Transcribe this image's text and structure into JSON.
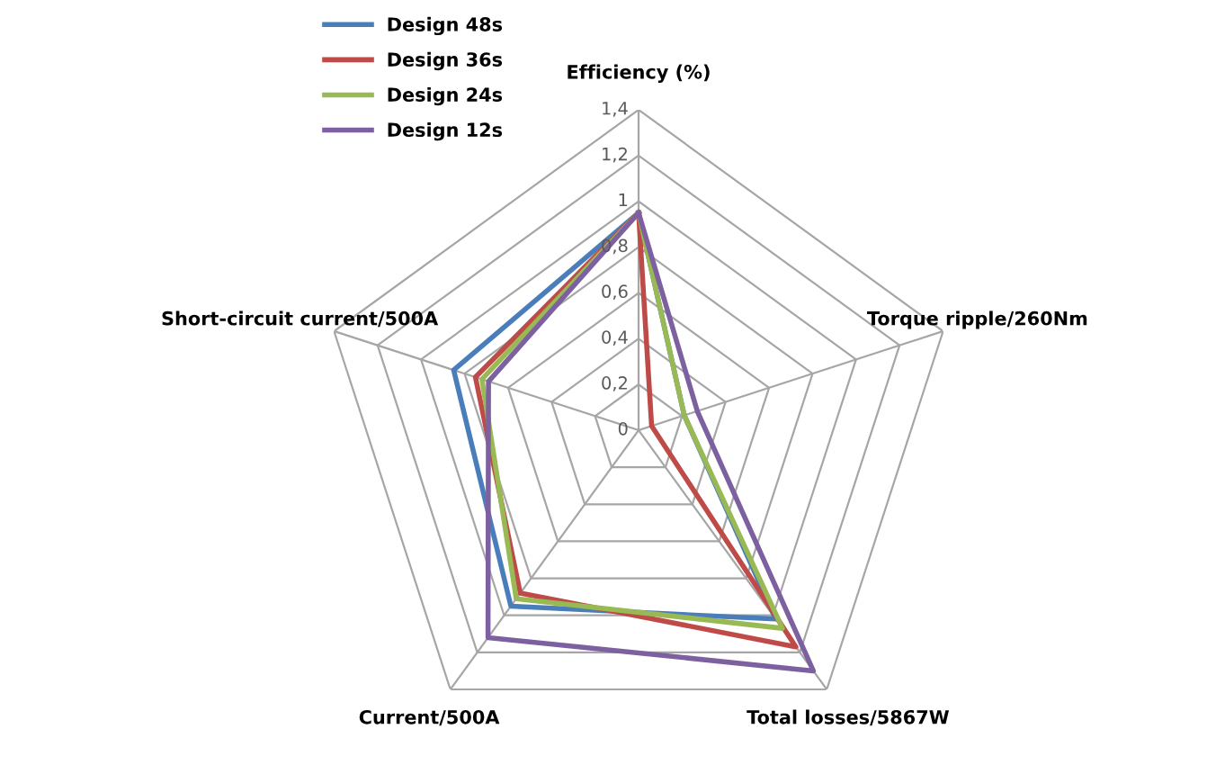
{
  "chart_data": {
    "type": "radar",
    "categories": [
      "Efficiency (%)",
      "Torque ripple/260Nm",
      "Total losses/5867W",
      "Current/500A",
      "Short-circuit current/500A"
    ],
    "series": [
      {
        "name": "Design 48s",
        "color": "#4a7ebb",
        "values": [
          0.95,
          0.21,
          1.02,
          0.95,
          0.85
        ]
      },
      {
        "name": "Design 36s",
        "color": "#be4b48",
        "values": [
          0.95,
          0.06,
          1.17,
          0.88,
          0.75
        ]
      },
      {
        "name": "Design 24s",
        "color": "#98b954",
        "values": [
          0.95,
          0.21,
          1.07,
          0.91,
          0.72
        ]
      },
      {
        "name": "Design 12s",
        "color": "#7d60a0",
        "values": [
          0.95,
          0.27,
          1.3,
          1.12,
          0.69
        ]
      }
    ],
    "ylim": [
      0,
      1.4
    ],
    "yticks": [
      {
        "value": 0,
        "label": "0"
      },
      {
        "value": 0.2,
        "label": "0,2"
      },
      {
        "value": 0.4,
        "label": "0,4"
      },
      {
        "value": 0.6,
        "label": "0,6"
      },
      {
        "value": 0.8,
        "label": "0,8"
      },
      {
        "value": 1,
        "label": "1"
      },
      {
        "value": 1.2,
        "label": "1,2"
      },
      {
        "value": 1.4,
        "label": "1,4"
      }
    ],
    "grid": true,
    "legend": "top left",
    "marker": "none",
    "line_style": "solid"
  }
}
